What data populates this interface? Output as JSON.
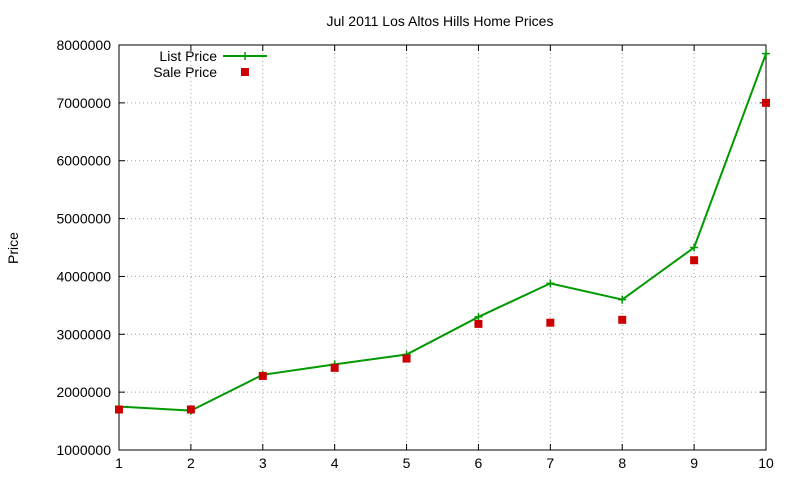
{
  "chart_data": {
    "type": "line",
    "title": "Jul 2011 Los Altos Hills Home Prices",
    "xlabel": "",
    "ylabel": "Price",
    "x": [
      1,
      2,
      3,
      4,
      5,
      6,
      7,
      8,
      9,
      10
    ],
    "xlim": [
      1,
      10
    ],
    "ylim": [
      1000000,
      8000000
    ],
    "x_ticks": [
      "1",
      "2",
      "3",
      "4",
      "5",
      "6",
      "7",
      "8",
      "9",
      "10"
    ],
    "y_ticks": [
      "1000000",
      "2000000",
      "3000000",
      "4000000",
      "5000000",
      "6000000",
      "7000000",
      "8000000"
    ],
    "grid": true,
    "legend_position": "top-left",
    "series": [
      {
        "name": "List Price",
        "style": "line-plus",
        "color": "#009900",
        "values": [
          1750000,
          1680000,
          2300000,
          2480000,
          2650000,
          3300000,
          3880000,
          3600000,
          4500000,
          7850000
        ]
      },
      {
        "name": "Sale Price",
        "style": "square-points",
        "color": "#cc0000",
        "values": [
          1700000,
          1700000,
          2280000,
          2420000,
          2580000,
          3180000,
          3200000,
          3250000,
          4280000,
          7000000
        ]
      }
    ]
  }
}
